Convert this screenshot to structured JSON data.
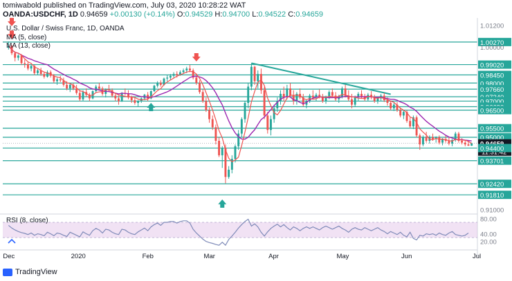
{
  "header": {
    "publisher_line": "tomiwabold published on TradingView.com, July 03, 2020 10:28:22 WAT",
    "symbol": "OANDA:USDCHF, 1D",
    "last": "0.94659",
    "change": "+0.00130 (+0.14%)",
    "o_label": "O:",
    "o_value": "0.94529",
    "h_label": "H:",
    "h_value": "0.94700",
    "l_label": "L:",
    "l_value": "0.94522",
    "c_label": "C:",
    "c_value": "0.94659"
  },
  "legend": {
    "title": "U.S. Dollar / Swiss Franc, 1D, OANDA",
    "ma5": "MA (5, close)",
    "ma13": "MA (13, close)"
  },
  "rsi_label": "RSI (8, close)",
  "footer": {
    "brand": "TradingView"
  },
  "colors": {
    "up": "#26a69a",
    "down": "#ef5350",
    "level_line": "#26a69a",
    "ma5": "#ef5350",
    "ma13": "#9c27b0",
    "rsi_line": "#7e8ab8",
    "rsi_band": "#e1bee7",
    "price_tag_bg": "#131722",
    "price_tag_fg": "#ffffff"
  },
  "chart_data": {
    "type": "candlestick",
    "price_axis": {
      "labels": [
        "1.01200",
        "1.00270",
        "1.00000",
        "0.99020",
        "0.98450",
        "0.98000",
        "0.97660",
        "0.97240",
        "0.97000",
        "0.96690",
        "0.96500",
        "0.95500",
        "0.95000",
        "0.94659",
        "0.94400",
        "0.93701",
        "0.92420",
        "0.91810",
        "0.91000"
      ],
      "label_values": [
        1.012,
        1.0027,
        1.0,
        0.9902,
        0.9845,
        0.98,
        0.9766,
        0.9724,
        0.97,
        0.9669,
        0.965,
        0.955,
        0.95,
        0.94659,
        0.944,
        0.93701,
        0.9242,
        0.9181,
        0.91
      ],
      "current_price": "0.94659",
      "countdown": "11:31:42",
      "ylim": [
        0.909,
        1.0145
      ]
    },
    "time_axis": {
      "labels": [
        "Dec",
        "2020",
        "Feb",
        "Mar",
        "Apr",
        "May",
        "Jun",
        "Jul"
      ],
      "label_index": [
        0,
        21,
        43,
        62,
        82,
        103,
        123,
        145
      ]
    },
    "horizontal_levels": [
      1.0027,
      0.9902,
      0.9845,
      0.98,
      0.9766,
      0.9724,
      0.97,
      0.9669,
      0.965,
      0.955,
      0.95,
      0.944,
      0.93701,
      0.9242,
      0.9181
    ],
    "trendline": {
      "from": [
        75,
        0.991
      ],
      "to": [
        118,
        0.9738
      ]
    },
    "arrows": [
      {
        "dir": "down",
        "index": 1,
        "price": 1.013,
        "color": "#ef5350"
      },
      {
        "dir": "down",
        "index": 1,
        "price": 1.006,
        "color": "#ef5350"
      },
      {
        "dir": "up",
        "index": 44,
        "price": 0.9675,
        "color": "#26a69a"
      },
      {
        "dir": "down",
        "index": 58,
        "price": 0.9935,
        "color": "#ef5350"
      },
      {
        "dir": "up",
        "index": 66,
        "price": 0.914,
        "color": "#26a69a"
      }
    ],
    "ohlc": [
      [
        0.9995,
        1.003,
        0.9985,
        1.0005
      ],
      [
        1.0005,
        1.001,
        0.9955,
        0.9965
      ],
      [
        0.9965,
        0.9975,
        0.992,
        0.994
      ],
      [
        0.994,
        0.996,
        0.9925,
        0.9952
      ],
      [
        0.9952,
        0.996,
        0.99,
        0.991
      ],
      [
        0.991,
        0.993,
        0.9885,
        0.9905
      ],
      [
        0.9905,
        0.9915,
        0.987,
        0.988
      ],
      [
        0.988,
        0.9905,
        0.9865,
        0.9895
      ],
      [
        0.9895,
        0.99,
        0.9845,
        0.9855
      ],
      [
        0.9855,
        0.988,
        0.9845,
        0.987
      ],
      [
        0.987,
        0.9885,
        0.984,
        0.985
      ],
      [
        0.985,
        0.986,
        0.9825,
        0.9835
      ],
      [
        0.9835,
        0.987,
        0.983,
        0.986
      ],
      [
        0.986,
        0.987,
        0.983,
        0.984
      ],
      [
        0.984,
        0.985,
        0.98,
        0.981
      ],
      [
        0.981,
        0.983,
        0.979,
        0.982
      ],
      [
        0.982,
        0.984,
        0.9805,
        0.9815
      ],
      [
        0.9815,
        0.983,
        0.978,
        0.979
      ],
      [
        0.979,
        0.981,
        0.976,
        0.977
      ],
      [
        0.977,
        0.98,
        0.975,
        0.979
      ],
      [
        0.979,
        0.98,
        0.976,
        0.977
      ],
      [
        0.977,
        0.979,
        0.9735,
        0.9745
      ],
      [
        0.9745,
        0.976,
        0.97,
        0.971
      ],
      [
        0.971,
        0.976,
        0.97,
        0.975
      ],
      [
        0.975,
        0.977,
        0.9725,
        0.9735
      ],
      [
        0.9735,
        0.9745,
        0.97,
        0.9715
      ],
      [
        0.9715,
        0.976,
        0.971,
        0.9755
      ],
      [
        0.9755,
        0.979,
        0.9745,
        0.978
      ],
      [
        0.978,
        0.98,
        0.976,
        0.977
      ],
      [
        0.977,
        0.978,
        0.973,
        0.974
      ],
      [
        0.974,
        0.977,
        0.972,
        0.9765
      ],
      [
        0.9765,
        0.979,
        0.975,
        0.976
      ],
      [
        0.976,
        0.977,
        0.972,
        0.973
      ],
      [
        0.973,
        0.9745,
        0.97,
        0.9715
      ],
      [
        0.9715,
        0.973,
        0.968,
        0.97
      ],
      [
        0.97,
        0.975,
        0.9695,
        0.9745
      ],
      [
        0.9745,
        0.977,
        0.973,
        0.974
      ],
      [
        0.974,
        0.976,
        0.971,
        0.972
      ],
      [
        0.972,
        0.973,
        0.969,
        0.9705
      ],
      [
        0.9705,
        0.972,
        0.968,
        0.969
      ],
      [
        0.969,
        0.9705,
        0.967,
        0.97
      ],
      [
        0.97,
        0.972,
        0.969,
        0.9715
      ],
      [
        0.9715,
        0.974,
        0.9705,
        0.9735
      ],
      [
        0.9735,
        0.975,
        0.97,
        0.9715
      ],
      [
        0.9715,
        0.976,
        0.971,
        0.9755
      ],
      [
        0.9755,
        0.979,
        0.975,
        0.9785
      ],
      [
        0.9785,
        0.981,
        0.9775,
        0.98
      ],
      [
        0.98,
        0.9815,
        0.978,
        0.979
      ],
      [
        0.979,
        0.983,
        0.9785,
        0.9825
      ],
      [
        0.9825,
        0.9845,
        0.981,
        0.983
      ],
      [
        0.983,
        0.985,
        0.9815,
        0.984
      ],
      [
        0.984,
        0.986,
        0.983,
        0.985
      ],
      [
        0.985,
        0.9865,
        0.983,
        0.9845
      ],
      [
        0.9845,
        0.987,
        0.984,
        0.986
      ],
      [
        0.986,
        0.988,
        0.985,
        0.987
      ],
      [
        0.987,
        0.989,
        0.9855,
        0.988
      ],
      [
        0.988,
        0.99,
        0.986,
        0.987
      ],
      [
        0.987,
        0.988,
        0.982,
        0.983
      ],
      [
        0.983,
        0.985,
        0.979,
        0.98
      ],
      [
        0.98,
        0.9815,
        0.974,
        0.975
      ],
      [
        0.975,
        0.9765,
        0.969,
        0.97
      ],
      [
        0.97,
        0.972,
        0.964,
        0.965
      ],
      [
        0.965,
        0.9665,
        0.958,
        0.96
      ],
      [
        0.96,
        0.962,
        0.954,
        0.9555
      ],
      [
        0.9555,
        0.957,
        0.946,
        0.948
      ],
      [
        0.948,
        0.95,
        0.939,
        0.94
      ],
      [
        0.94,
        0.945,
        0.933,
        0.944
      ],
      [
        0.944,
        0.946,
        0.9245,
        0.928
      ],
      [
        0.928,
        0.934,
        0.927,
        0.932
      ],
      [
        0.932,
        0.94,
        0.93,
        0.938
      ],
      [
        0.938,
        0.946,
        0.936,
        0.945
      ],
      [
        0.945,
        0.954,
        0.943,
        0.952
      ],
      [
        0.952,
        0.961,
        0.95,
        0.96
      ],
      [
        0.96,
        0.97,
        0.958,
        0.969
      ],
      [
        0.969,
        0.98,
        0.966,
        0.978
      ],
      [
        0.978,
        0.991,
        0.976,
        0.989
      ],
      [
        0.989,
        0.9895,
        0.979,
        0.981
      ],
      [
        0.981,
        0.987,
        0.977,
        0.985
      ],
      [
        0.985,
        0.988,
        0.974,
        0.976
      ],
      [
        0.976,
        0.978,
        0.96,
        0.962
      ],
      [
        0.962,
        0.964,
        0.952,
        0.954
      ],
      [
        0.954,
        0.962,
        0.951,
        0.96
      ],
      [
        0.96,
        0.968,
        0.958,
        0.966
      ],
      [
        0.966,
        0.972,
        0.964,
        0.97
      ],
      [
        0.97,
        0.976,
        0.968,
        0.974
      ],
      [
        0.974,
        0.978,
        0.97,
        0.972
      ],
      [
        0.972,
        0.979,
        0.971,
        0.977
      ],
      [
        0.977,
        0.98,
        0.972,
        0.973
      ],
      [
        0.973,
        0.976,
        0.968,
        0.97
      ],
      [
        0.97,
        0.975,
        0.968,
        0.974
      ],
      [
        0.974,
        0.977,
        0.971,
        0.972
      ],
      [
        0.972,
        0.974,
        0.967,
        0.968
      ],
      [
        0.968,
        0.971,
        0.966,
        0.97
      ],
      [
        0.97,
        0.974,
        0.969,
        0.973
      ],
      [
        0.973,
        0.976,
        0.971,
        0.972
      ],
      [
        0.972,
        0.9745,
        0.97,
        0.9735
      ],
      [
        0.9735,
        0.9765,
        0.9715,
        0.9725
      ],
      [
        0.9725,
        0.974,
        0.969,
        0.97
      ],
      [
        0.97,
        0.973,
        0.9685,
        0.972
      ],
      [
        0.972,
        0.976,
        0.971,
        0.975
      ],
      [
        0.975,
        0.977,
        0.972,
        0.973
      ],
      [
        0.973,
        0.975,
        0.97,
        0.971
      ],
      [
        0.971,
        0.9735,
        0.969,
        0.9725
      ],
      [
        0.9725,
        0.978,
        0.9715,
        0.977
      ],
      [
        0.977,
        0.979,
        0.972,
        0.973
      ],
      [
        0.973,
        0.976,
        0.97,
        0.971
      ],
      [
        0.971,
        0.974,
        0.966,
        0.968
      ],
      [
        0.968,
        0.973,
        0.967,
        0.972
      ],
      [
        0.972,
        0.975,
        0.97,
        0.974
      ],
      [
        0.974,
        0.976,
        0.9715,
        0.9725
      ],
      [
        0.9725,
        0.974,
        0.97,
        0.971
      ],
      [
        0.971,
        0.9745,
        0.97,
        0.9735
      ],
      [
        0.9735,
        0.9755,
        0.971,
        0.972
      ],
      [
        0.972,
        0.9735,
        0.969,
        0.97
      ],
      [
        0.97,
        0.9725,
        0.9685,
        0.9715
      ],
      [
        0.9715,
        0.974,
        0.97,
        0.973
      ],
      [
        0.973,
        0.9745,
        0.9695,
        0.9705
      ],
      [
        0.9705,
        0.972,
        0.9675,
        0.969
      ],
      [
        0.969,
        0.97,
        0.965,
        0.966
      ],
      [
        0.966,
        0.969,
        0.9645,
        0.968
      ],
      [
        0.968,
        0.9695,
        0.964,
        0.965
      ],
      [
        0.965,
        0.9665,
        0.961,
        0.962
      ],
      [
        0.962,
        0.965,
        0.96,
        0.964
      ],
      [
        0.964,
        0.965,
        0.958,
        0.959
      ],
      [
        0.959,
        0.961,
        0.955,
        0.956
      ],
      [
        0.956,
        0.962,
        0.9545,
        0.961
      ],
      [
        0.961,
        0.962,
        0.95,
        0.951
      ],
      [
        0.951,
        0.952,
        0.943,
        0.946
      ],
      [
        0.946,
        0.951,
        0.945,
        0.95
      ],
      [
        0.95,
        0.953,
        0.947,
        0.948
      ],
      [
        0.948,
        0.951,
        0.9465,
        0.95
      ],
      [
        0.95,
        0.952,
        0.948,
        0.949
      ],
      [
        0.949,
        0.9505,
        0.947,
        0.95
      ],
      [
        0.95,
        0.951,
        0.946,
        0.947
      ],
      [
        0.947,
        0.9495,
        0.9455,
        0.949
      ],
      [
        0.949,
        0.951,
        0.947,
        0.948
      ],
      [
        0.948,
        0.95,
        0.9455,
        0.9465
      ],
      [
        0.9465,
        0.949,
        0.945,
        0.9485
      ],
      [
        0.9485,
        0.953,
        0.9475,
        0.952
      ],
      [
        0.952,
        0.953,
        0.947,
        0.948
      ],
      [
        0.948,
        0.9495,
        0.946,
        0.947
      ],
      [
        0.947,
        0.9485,
        0.945,
        0.946
      ],
      [
        0.946,
        0.948,
        0.9452,
        0.9453
      ],
      [
        0.94529,
        0.947,
        0.94522,
        0.94659
      ]
    ],
    "rsi": {
      "axis_labels": [
        "80.00",
        "40.00",
        "20.00"
      ],
      "axis_values": [
        80,
        40,
        20
      ],
      "band": [
        70,
        30
      ],
      "ylim": [
        5,
        88
      ],
      "values": [
        62,
        55,
        50,
        46,
        43,
        41,
        38,
        42,
        36,
        40,
        38,
        35,
        44,
        40,
        35,
        42,
        40,
        36,
        33,
        44,
        40,
        36,
        32,
        45,
        40,
        36,
        48,
        54,
        50,
        42,
        52,
        50,
        44,
        40,
        38,
        52,
        50,
        44,
        40,
        38,
        45,
        50,
        55,
        48,
        58,
        64,
        68,
        62,
        70,
        70,
        72,
        72,
        68,
        72,
        74,
        74,
        68,
        52,
        42,
        34,
        26,
        20,
        17,
        15,
        12,
        10,
        18,
        10,
        25,
        34,
        44,
        55,
        64,
        72,
        78,
        60,
        66,
        58,
        44,
        34,
        45,
        54,
        60,
        65,
        58,
        64,
        56,
        50,
        58,
        54,
        48,
        54,
        58,
        54,
        58,
        54,
        50,
        56,
        60,
        56,
        52,
        56,
        60,
        54,
        50,
        44,
        52,
        56,
        52,
        50,
        56,
        52,
        48,
        52,
        56,
        50,
        46,
        40,
        46,
        42,
        38,
        44,
        36,
        32,
        44,
        28,
        24,
        36,
        34,
        40,
        38,
        40,
        36,
        42,
        38,
        36,
        42,
        46,
        38,
        36,
        34,
        36,
        42
      ]
    }
  }
}
